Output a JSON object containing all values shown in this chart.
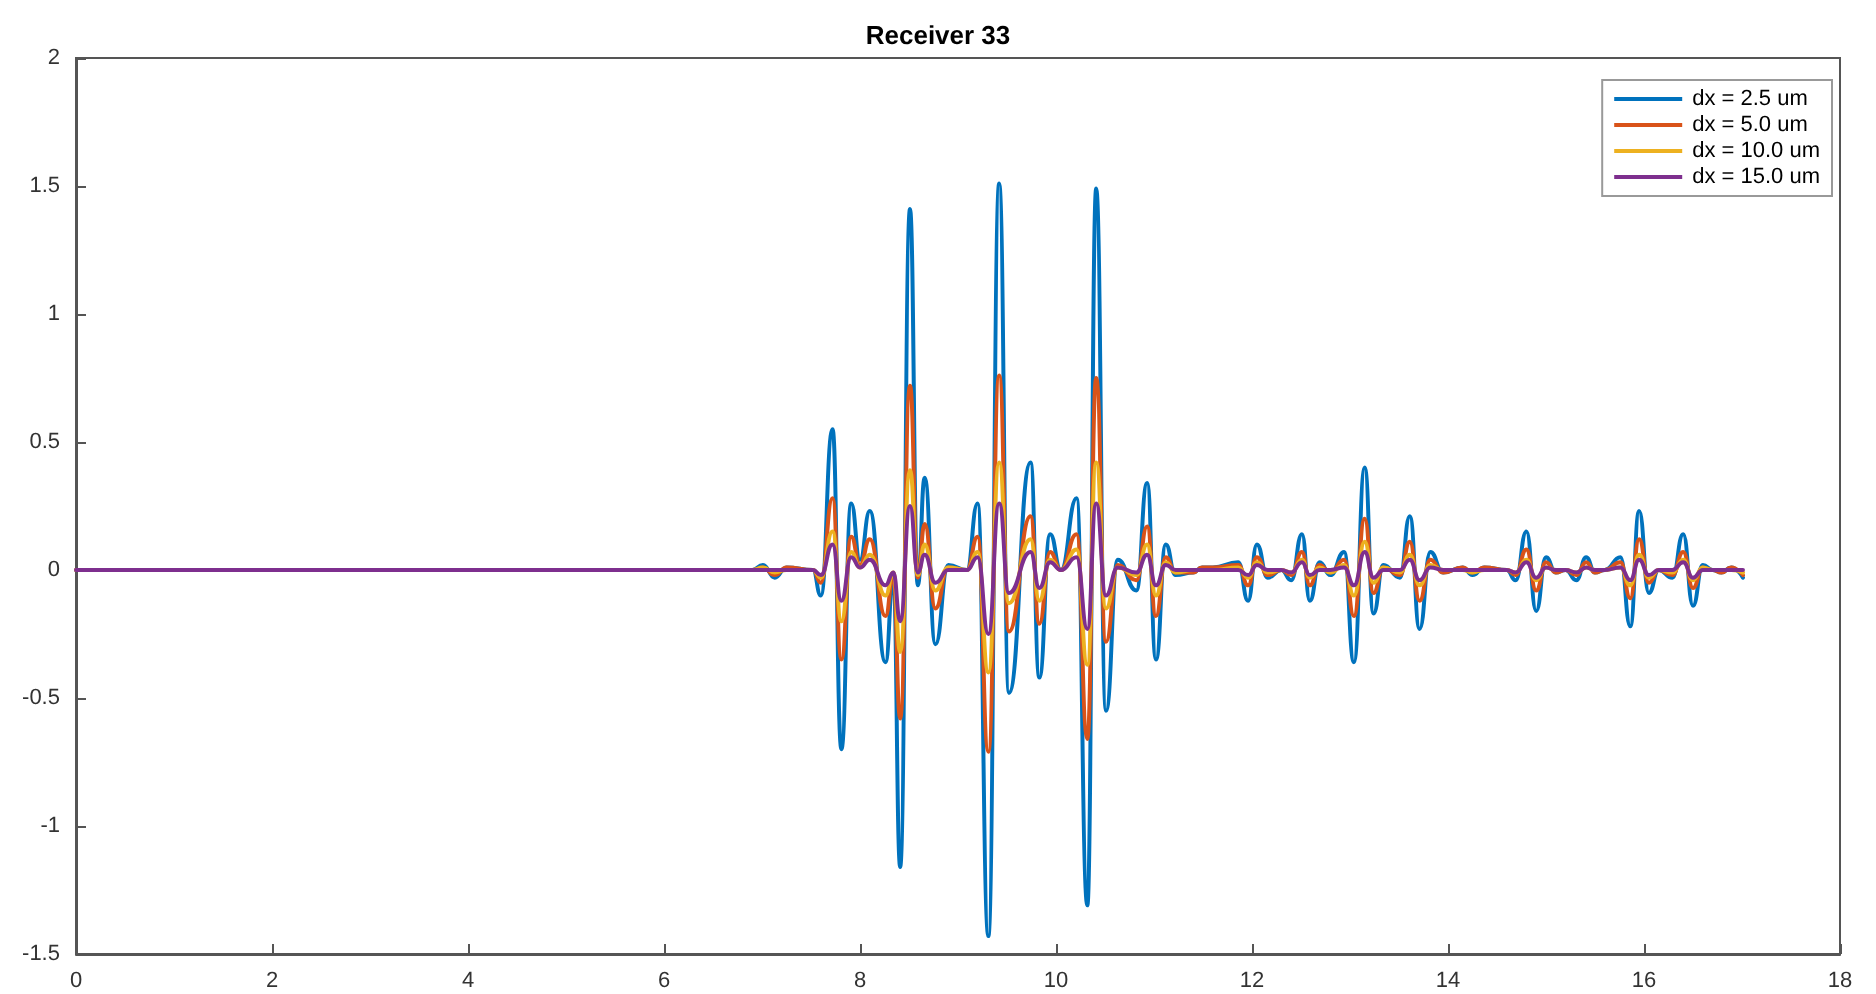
{
  "chart_data": {
    "type": "line",
    "title": "Receiver 33",
    "x": [
      0,
      6.9,
      7.01,
      7.13,
      7.25,
      7.52,
      7.6,
      7.72,
      7.81,
      7.91,
      8.0,
      8.1,
      8.26,
      8.34,
      8.41,
      8.51,
      8.59,
      8.66,
      8.77,
      8.9,
      9.09,
      9.2,
      9.31,
      9.42,
      9.52,
      9.74,
      9.83,
      9.94,
      10.05,
      10.21,
      10.32,
      10.41,
      10.51,
      10.63,
      10.82,
      10.93,
      11.02,
      11.12,
      11.22,
      11.4,
      11.49,
      11.6,
      11.86,
      11.96,
      12.05,
      12.16,
      12.3,
      12.4,
      12.51,
      12.59,
      12.69,
      12.8,
      12.94,
      13.04,
      13.15,
      13.24,
      13.34,
      13.51,
      13.61,
      13.71,
      13.82,
      13.95,
      14.15,
      14.25,
      14.37,
      14.6,
      14.69,
      14.8,
      14.9,
      15.0,
      15.1,
      15.2,
      15.31,
      15.41,
      15.5,
      15.6,
      15.76,
      15.86,
      15.95,
      16.05,
      16.15,
      16.29,
      16.4,
      16.5,
      16.6,
      16.7,
      16.79,
      16.89,
      17.01
    ],
    "series": [
      {
        "name": "dx = 2.5 um",
        "color": "#0072bd",
        "values": [
          0,
          0,
          0.02,
          -0.03,
          0.01,
          0,
          -0.1,
          0.55,
          -0.7,
          0.26,
          0.04,
          0.23,
          -0.36,
          -0.03,
          -1.16,
          1.41,
          -0.06,
          0.36,
          -0.29,
          0.02,
          0,
          0.26,
          -1.43,
          1.51,
          -0.48,
          0.42,
          -0.42,
          0.14,
          0,
          0.28,
          -1.31,
          1.49,
          -0.55,
          0.04,
          -0.08,
          0.34,
          -0.35,
          0.1,
          -0.02,
          -0.01,
          0.01,
          0.01,
          0.03,
          -0.12,
          0.1,
          -0.03,
          0,
          -0.04,
          0.14,
          -0.12,
          0.03,
          -0.02,
          0.07,
          -0.36,
          0.4,
          -0.17,
          0.02,
          -0.03,
          0.21,
          -0.23,
          0.07,
          -0.01,
          0.01,
          -0.02,
          0.01,
          0,
          -0.04,
          0.15,
          -0.16,
          0.05,
          -0.01,
          0,
          -0.04,
          0.05,
          -0.01,
          0,
          0.05,
          -0.22,
          0.23,
          -0.09,
          0,
          -0.03,
          0.14,
          -0.14,
          0.02,
          0,
          -0.01,
          0.01,
          -0.03
        ]
      },
      {
        "name": "dx = 5.0 um",
        "color": "#d95319",
        "values": [
          0,
          0,
          0.01,
          -0.02,
          0.01,
          0,
          -0.05,
          0.28,
          -0.35,
          0.13,
          0.02,
          0.12,
          -0.18,
          -0.02,
          -0.58,
          0.72,
          -0.03,
          0.18,
          -0.15,
          0.01,
          0,
          0.13,
          -0.71,
          0.76,
          -0.24,
          0.21,
          -0.21,
          0.07,
          0,
          0.14,
          -0.66,
          0.75,
          -0.28,
          0.02,
          -0.04,
          0.17,
          -0.18,
          0.05,
          -0.01,
          -0.01,
          0.01,
          0.01,
          0.02,
          -0.06,
          0.05,
          -0.02,
          0,
          -0.02,
          0.07,
          -0.06,
          0.02,
          -0.01,
          0.04,
          -0.18,
          0.2,
          -0.09,
          0.01,
          -0.02,
          0.11,
          -0.12,
          0.04,
          -0.01,
          0.01,
          -0.01,
          0.01,
          0,
          -0.02,
          0.08,
          -0.08,
          0.03,
          -0.01,
          0,
          -0.02,
          0.03,
          -0.01,
          0,
          0.03,
          -0.11,
          0.12,
          -0.05,
          0,
          -0.02,
          0.07,
          -0.07,
          0.01,
          0,
          -0.01,
          0.01,
          -0.02
        ]
      },
      {
        "name": "dx = 10.0 um",
        "color": "#edb120",
        "values": [
          0,
          0,
          0.01,
          -0.01,
          0,
          0,
          -0.03,
          0.15,
          -0.2,
          0.07,
          0.01,
          0.06,
          -0.1,
          -0.01,
          -0.32,
          0.39,
          -0.02,
          0.1,
          -0.08,
          0.01,
          0,
          0.07,
          -0.4,
          0.42,
          -0.13,
          0.12,
          -0.12,
          0.04,
          0,
          0.08,
          -0.37,
          0.42,
          -0.15,
          0.01,
          -0.02,
          0.1,
          -0.1,
          0.03,
          -0.01,
          0,
          0,
          0,
          0.01,
          -0.03,
          0.03,
          -0.01,
          0,
          -0.01,
          0.04,
          -0.03,
          0.01,
          -0.01,
          0.02,
          -0.1,
          0.11,
          -0.05,
          0.01,
          -0.01,
          0.06,
          -0.06,
          0.02,
          0,
          0,
          -0.01,
          0,
          0,
          -0.01,
          0.04,
          -0.04,
          0.01,
          0,
          0,
          -0.01,
          0.01,
          0,
          0,
          0.01,
          -0.06,
          0.06,
          -0.03,
          0,
          -0.01,
          0.04,
          -0.04,
          0.01,
          0,
          0,
          0,
          -0.01
        ]
      },
      {
        "name": "dx = 15.0 um",
        "color": "#7e2f8e",
        "values": [
          0,
          0,
          0,
          0,
          0,
          0,
          -0.02,
          0.1,
          -0.12,
          0.05,
          0.01,
          0.04,
          -0.06,
          -0.01,
          -0.2,
          0.25,
          -0.01,
          0.06,
          -0.05,
          0,
          0,
          0.05,
          -0.25,
          0.26,
          -0.09,
          0.07,
          -0.07,
          0.03,
          0,
          0.05,
          -0.23,
          0.26,
          -0.1,
          0.01,
          -0.01,
          0.06,
          -0.06,
          0.02,
          0,
          0,
          0,
          0,
          0,
          -0.02,
          0.02,
          0,
          0,
          -0.01,
          0.03,
          -0.02,
          0,
          0,
          0.01,
          -0.06,
          0.07,
          -0.03,
          0,
          0,
          0.04,
          -0.04,
          0.01,
          0,
          0,
          0,
          0,
          0,
          -0.01,
          0.03,
          -0.03,
          0.01,
          0,
          0,
          -0.01,
          0.01,
          0,
          0,
          0.01,
          -0.04,
          0.04,
          -0.02,
          0,
          0,
          0.03,
          -0.03,
          0,
          0,
          0,
          0,
          0
        ]
      }
    ],
    "xlim": [
      0,
      18
    ],
    "xticks": [
      0,
      2,
      4,
      6,
      8,
      10,
      12,
      14,
      16,
      18
    ],
    "ylim": [
      -1.5,
      2
    ],
    "yticks": [
      -1.5,
      -1,
      -0.5,
      0,
      0.5,
      1,
      1.5,
      2
    ],
    "grid": false,
    "legend": "top right",
    "marker": "none",
    "line_style": "solid"
  }
}
